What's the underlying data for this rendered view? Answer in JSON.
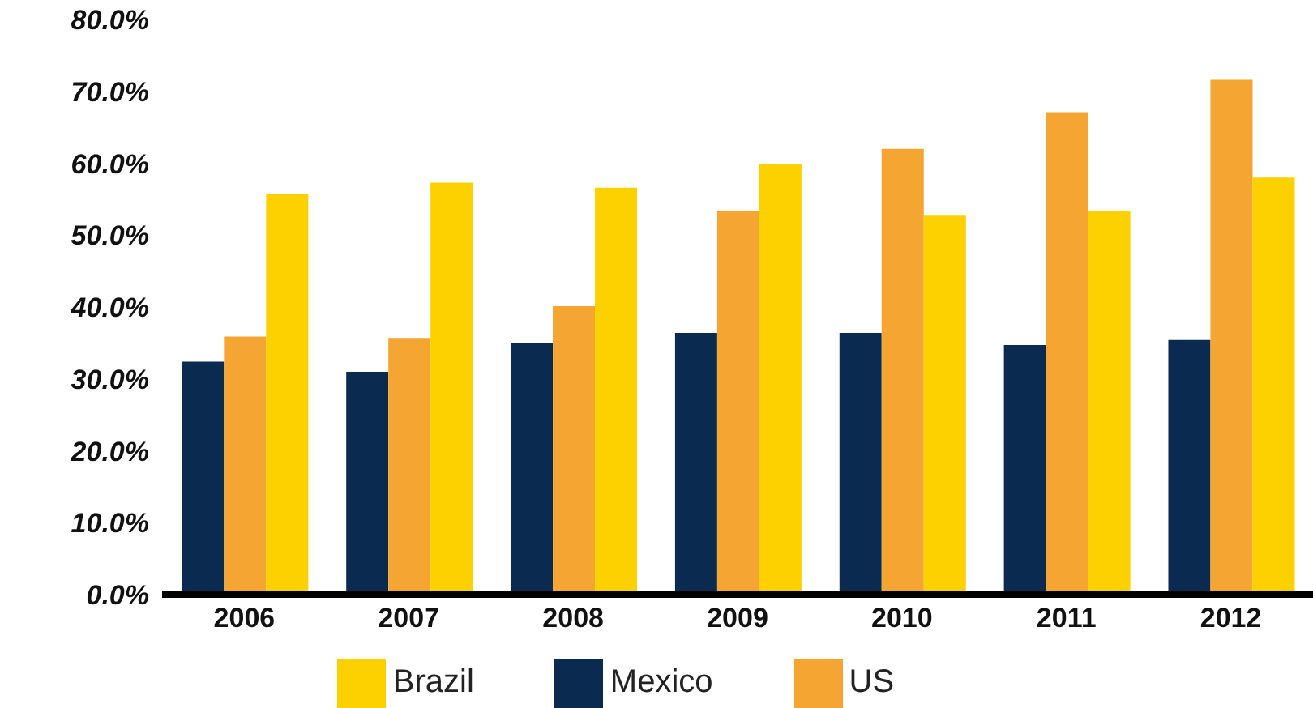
{
  "chart_data": {
    "type": "bar",
    "categories": [
      "2006",
      "2007",
      "2008",
      "2009",
      "2010",
      "2011",
      "2012"
    ],
    "series": [
      {
        "name": "Mexico",
        "color": "#0b2a4f",
        "values": [
          32.4,
          31.0,
          35.0,
          36.4,
          36.4,
          34.7,
          35.4
        ]
      },
      {
        "name": "US",
        "color": "#f4a532",
        "values": [
          35.9,
          35.7,
          40.1,
          53.4,
          62.0,
          67.1,
          71.6
        ]
      },
      {
        "name": "Brazil",
        "color": "#fdd000",
        "values": [
          55.7,
          57.3,
          56.6,
          59.9,
          52.7,
          53.4,
          58.0
        ]
      }
    ],
    "ylim": [
      0,
      80
    ],
    "yticks": [
      {
        "value": 0,
        "label": "0.0%"
      },
      {
        "value": 10,
        "label": "10.0%"
      },
      {
        "value": 20,
        "label": "20.0%"
      },
      {
        "value": 30,
        "label": "30.0%"
      },
      {
        "value": 40,
        "label": "40.0%"
      },
      {
        "value": 50,
        "label": "50.0%"
      },
      {
        "value": 60,
        "label": "60.0%"
      },
      {
        "value": 70,
        "label": "70.0%"
      },
      {
        "value": 80,
        "label": "80.0%"
      }
    ],
    "grid": false,
    "legend": "bottom"
  }
}
